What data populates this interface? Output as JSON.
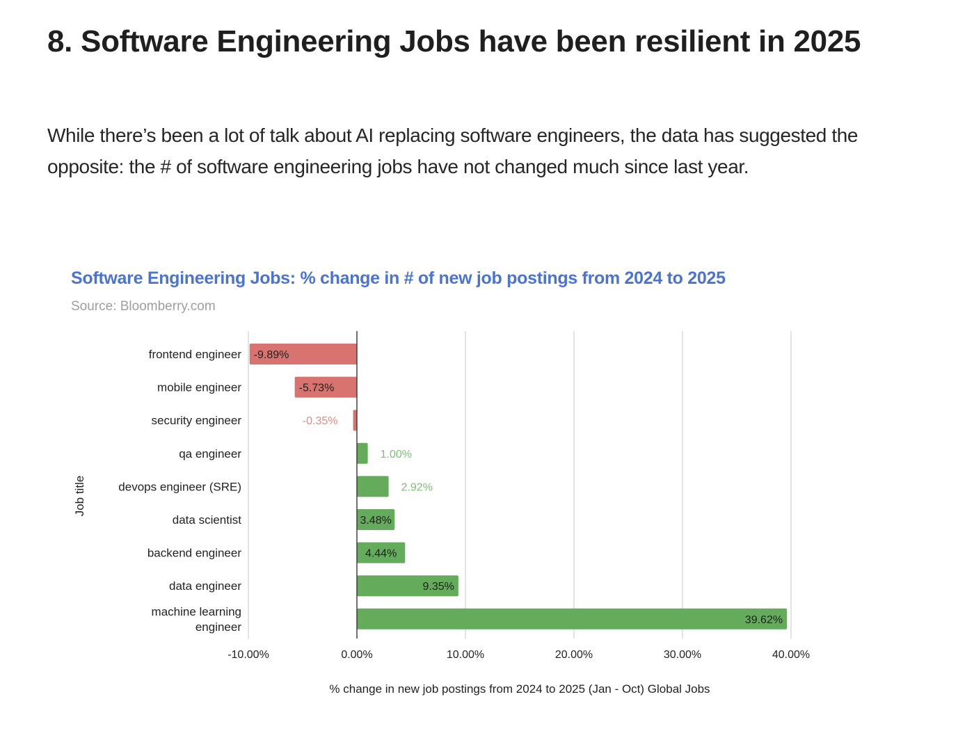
{
  "article": {
    "heading": "8. Software Engineering Jobs have been resilient in 2025",
    "paragraph": "While there’s been a lot of talk about AI replacing software engineers, the data has suggested the opposite: the # of software engineering jobs have not changed much since last year."
  },
  "colors": {
    "negative": "#d9736f",
    "positive": "#64ab5c",
    "negative_label_outside": "#e08a87",
    "positive_label_outside": "#7dbf74",
    "title": "#4a74d0",
    "source": "#9e9e9e",
    "gridline": "#d0d0d0",
    "zero_line": "#333333"
  },
  "chart_data": {
    "type": "bar",
    "orientation": "horizontal",
    "title": "Software Engineering Jobs: % change in # of new job postings from 2024 to 2025",
    "subtitle": "Source: Bloomberry.com",
    "xlabel": "% change in new job postings from 2024 to 2025 (Jan - Oct) Global Jobs",
    "ylabel": "Job title",
    "xlim": [
      -10,
      40
    ],
    "xticks": [
      -10,
      0,
      10,
      20,
      30,
      40
    ],
    "xtick_labels": [
      "-10.00%",
      "0.00%",
      "10.00%",
      "20.00%",
      "30.00%",
      "40.00%"
    ],
    "grid": true,
    "legend": "none",
    "categories": [
      [
        "frontend engineer"
      ],
      [
        "mobile engineer"
      ],
      [
        "security engineer"
      ],
      [
        "qa engineer"
      ],
      [
        "devops engineer (SRE)"
      ],
      [
        "data scientist"
      ],
      [
        "backend engineer"
      ],
      [
        "data engineer"
      ],
      [
        "machine learning",
        "engineer"
      ]
    ],
    "values": [
      -9.89,
      -5.73,
      -0.35,
      1.0,
      2.92,
      3.48,
      4.44,
      9.35,
      39.62
    ],
    "value_labels": [
      "-9.89%",
      "-5.73%",
      "-0.35%",
      "1.00%",
      "2.92%",
      "3.48%",
      "4.44%",
      "9.35%",
      "39.62%"
    ]
  }
}
